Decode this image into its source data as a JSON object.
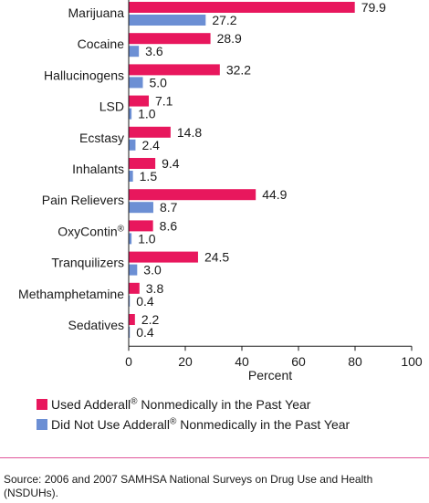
{
  "chart_data": {
    "type": "bar",
    "orientation": "horizontal",
    "categories": [
      "Marijuana",
      "Cocaine",
      "Hallucinogens",
      "LSD",
      "Ecstasy",
      "Inhalants",
      "Pain Relievers",
      "OxyContin",
      "Tranquilizers",
      "Methamphetamine",
      "Sedatives"
    ],
    "category_sup": [
      "",
      "",
      "",
      "",
      "",
      "",
      "",
      "®",
      "",
      "",
      ""
    ],
    "series": [
      {
        "name": "Used Adderall® Nonmedically in the Past Year",
        "values": [
          79.9,
          28.9,
          32.2,
          7.1,
          14.8,
          9.4,
          44.9,
          8.6,
          24.5,
          3.8,
          2.2
        ],
        "labels": [
          "79.9",
          "28.9",
          "32.2",
          "7.1",
          "14.8",
          "9.4",
          "44.9",
          "8.6",
          "24.5",
          "3.8",
          "2.2"
        ]
      },
      {
        "name": "Did Not Use Adderall® Nonmedically in the Past Year",
        "values": [
          27.2,
          3.6,
          5.0,
          1.0,
          2.4,
          1.5,
          8.7,
          1.0,
          3.0,
          0.4,
          0.4
        ],
        "labels": [
          "27.2",
          "3.6",
          "5.0",
          "1.0",
          "2.4",
          "1.5",
          "8.7",
          "1.0",
          "3.0",
          "0.4",
          "0.4"
        ]
      }
    ],
    "xlabel": "Percent",
    "xlim": [
      0,
      100
    ],
    "xticks": [
      0,
      20,
      40,
      60,
      80,
      100
    ],
    "xtick_labels": [
      "0",
      "20",
      "40",
      "60",
      "80",
      "100"
    ],
    "grid": false,
    "legend_position": "bottom-left",
    "colors": [
      "#e8175d",
      "#6c8fd4"
    ]
  },
  "legend": {
    "items": [
      {
        "before": "Used Adderall",
        "sup": "®",
        "after": " Nonmedically in the Past Year"
      },
      {
        "before": "Did Not Use Adderall",
        "sup": "®",
        "after": " Nonmedically in the Past Year"
      }
    ]
  },
  "source": "Source: 2006 and 2007 SAMHSA National Surveys on Drug Use and Health (NSDUHs)."
}
